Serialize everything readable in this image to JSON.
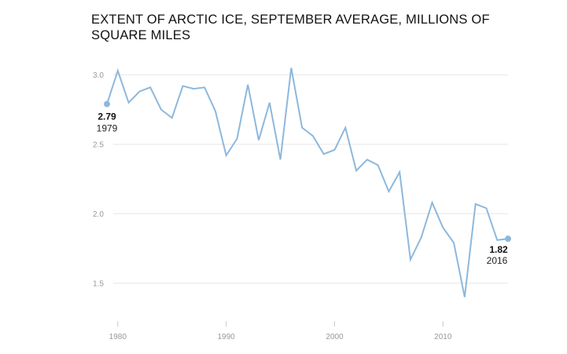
{
  "chart_data": {
    "type": "line",
    "title": "EXTENT OF ARCTIC ICE, SEPTEMBER AVERAGE, MILLIONS OF SQUARE MILES",
    "xlabel": "",
    "ylabel": "",
    "x": [
      1979,
      1980,
      1981,
      1982,
      1983,
      1984,
      1985,
      1986,
      1987,
      1988,
      1989,
      1990,
      1991,
      1992,
      1993,
      1994,
      1995,
      1996,
      1997,
      1998,
      1999,
      2000,
      2001,
      2002,
      2003,
      2004,
      2005,
      2006,
      2007,
      2008,
      2009,
      2010,
      2011,
      2012,
      2013,
      2014,
      2015,
      2016
    ],
    "series": [
      {
        "name": "",
        "values": [
          2.79,
          3.03,
          2.8,
          2.88,
          2.91,
          2.75,
          2.69,
          2.92,
          2.9,
          2.91,
          2.74,
          2.42,
          2.54,
          2.93,
          2.53,
          2.8,
          2.39,
          3.05,
          2.62,
          2.56,
          2.43,
          2.46,
          2.62,
          2.31,
          2.39,
          2.35,
          2.16,
          2.3,
          1.67,
          1.83,
          2.08,
          1.9,
          1.79,
          1.4,
          2.07,
          2.04,
          1.81,
          1.82
        ]
      }
    ],
    "xticks": [
      "1980",
      "1990",
      "2000",
      "2010"
    ],
    "yticks": [
      "3.0",
      "2.5",
      "2.0",
      "1.5"
    ],
    "xlim": [
      1979,
      2016
    ],
    "ylim": [
      1.25,
      3.2
    ],
    "grid": "horizontal",
    "line_color": "#8db8dc",
    "annotations": [
      {
        "value": "2.79",
        "year": "1979"
      },
      {
        "value": "1.82",
        "year": "2016"
      }
    ]
  }
}
